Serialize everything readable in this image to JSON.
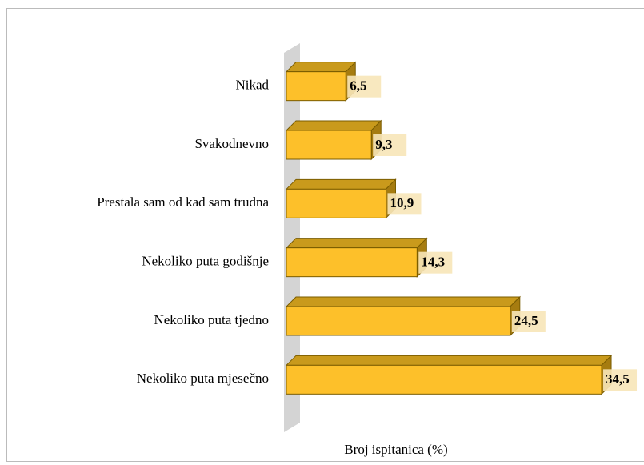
{
  "chart_data": {
    "type": "bar3d_horizontal",
    "x_label": "Broj ispitanica (%)",
    "categories": [
      "Nikad",
      "Svakodnevno",
      "Prestala sam od kad sam trudna",
      "Nekoliko puta godišnje",
      "Nekoliko puta tjedno",
      "Nekoliko puta mjesečno"
    ],
    "values": [
      6.5,
      9.3,
      10.9,
      14.3,
      24.5,
      34.5
    ],
    "value_labels": [
      "6,5",
      "9,3",
      "10,9",
      "14,3",
      "24,5",
      "34,5"
    ],
    "color": "#fdc02a",
    "xlim": [
      0,
      38
    ]
  }
}
